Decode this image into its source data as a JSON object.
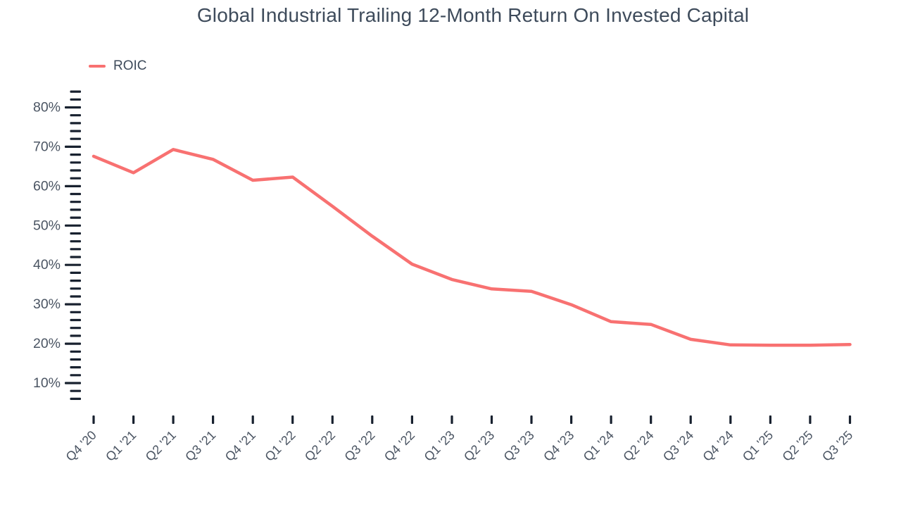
{
  "title": "Global Industrial Trailing 12-Month Return On Invested Capital",
  "legend": {
    "label": "ROIC",
    "swatch_color": "#f87171"
  },
  "colors": {
    "line": "#f87171",
    "axis_label": "#4b5563",
    "tick_mark": "#18212f",
    "title_text": "#3e4b5b",
    "background": "#ffffff"
  },
  "chart_data": {
    "type": "line",
    "title": "Global Industrial Trailing 12-Month Return On Invested Capital",
    "xlabel": "",
    "ylabel": "",
    "unit": "%",
    "grid": false,
    "legend_position": "top-left",
    "categories": [
      "Q4 '20",
      "Q1 '21",
      "Q2 '21",
      "Q3 '21",
      "Q4 '21",
      "Q1 '22",
      "Q2 '22",
      "Q3 '22",
      "Q4 '22",
      "Q1 '23",
      "Q2 '23",
      "Q3 '23",
      "Q4 '23",
      "Q1 '24",
      "Q2 '24",
      "Q3 '24",
      "Q4 '24",
      "Q1 '25",
      "Q2 '25",
      "Q3 '25"
    ],
    "series": [
      {
        "name": "ROIC",
        "color": "#f87171",
        "values": [
          67.6,
          63.4,
          69.3,
          66.8,
          61.5,
          62.3,
          54.9,
          47.3,
          40.2,
          36.3,
          33.9,
          33.3,
          29.9,
          25.6,
          24.9,
          21.1,
          19.7,
          19.6,
          19.6,
          19.8
        ]
      }
    ],
    "y_axis": {
      "tick_labels": [
        "10%",
        "20%",
        "30%",
        "40%",
        "50%",
        "60%",
        "70%",
        "80%"
      ],
      "label_values": [
        10,
        20,
        30,
        40,
        50,
        60,
        70,
        80
      ],
      "major_step": 10,
      "minor_step": 2,
      "ylim": [
        6,
        84
      ]
    }
  }
}
